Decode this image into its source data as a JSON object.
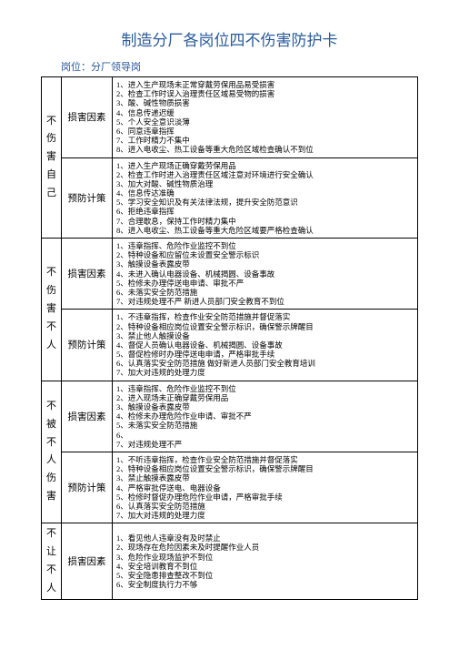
{
  "title": "制造分厂各岗位四不伤害防护卡",
  "subtitle": "岗位：分厂领导岗",
  "sections": [
    {
      "header": "不伤害自己",
      "rows": [
        {
          "label": "损害因素",
          "items": [
            "1、进入生产现场未正常穿戴劳保用品易受损害",
            "2、检查工作时误入治理责任区域易受物的损害",
            "3、酸、碱性物质损害",
            "4、信息传递迟缓",
            "5、个人安全意识淡薄",
            "6、同意违章指挥",
            "7、工作时精力不集中",
            "8、进入电收尘、热工设备等重大危险区域检查确认不到位"
          ]
        },
        {
          "label": "预防计策",
          "items": [
            "1、进入生产现场正确穿戴劳保用品",
            "2、检查工作时进入治理责任区域注意对环境进行安全确认",
            "3、加大对酸、碱性物质治理",
            "4、信息传达准确",
            "5、学习安全知识及有关法律法规，提升安全防范意识",
            "6、拒绝违章指挥",
            "7、合理歇息，保持工作时精力集中",
            "8、进入电收尘、热工设备等重大危险区域要严格检查确认"
          ]
        }
      ]
    },
    {
      "header": "不伤害不人",
      "rows": [
        {
          "label": "损害因素",
          "items": [
            "1、违章指挥、危险作业监控不到位",
            "2、特种设备和应留位未设置安全警示标识",
            "3、触摸设备表露皮带",
            "4、未进入确认电器设备、机械揭圆、设备事故",
            "5、检修未办理停送电申请、审批不严",
            "6、未落实安全防范措施",
            "7、对违规处理不严    新进人员部门安全教育不到位"
          ]
        },
        {
          "label": "预防计策",
          "items": [
            "1、不违章指挥，检查作业安全防范措施并督促落实",
            "2、特种设备相应岗位设置安全警示标识，确保警示牌醒目",
            "3、禁止他人触摸设备",
            "4、督促人员确认电器设备、机械揭圆、设备事故",
            "5、督促检修时办理停送电申请，严格审批手续",
            "6、认真落实安全防范措施  做好新进人员部门安全教育培训",
            "7、加大对违规的处理力度"
          ]
        }
      ]
    },
    {
      "header": "不被不人伤害",
      "rows": [
        {
          "label": "损害因素",
          "items": [
            "1、违章指挥、危险作业监控不到位",
            "2、进入现场未正确穿戴劳保用品",
            "3、触摸设备表露皮带",
            "4、检修未办理危险作业申请、审批不严",
            "5、未落实安全防范措施",
            "6、",
            "7、对违规处理不严"
          ]
        },
        {
          "label": "预防计策",
          "items": [
            "1、不听违章指挥，检查作业安全防范措施并督促落实",
            "2、特种设备相应岗位设置安全警示标识，确保警示牌醒目",
            "3、禁止触摸表露皮带",
            "4、严格审批停送电、电器设备",
            "5、检修时督促办理危险作业申请，严格审批手续",
            "6、认真落实安全防范措施",
            "7、加大对违规的处理力度"
          ]
        }
      ]
    },
    {
      "header": "不让不人",
      "rows": [
        {
          "label": "损害因素",
          "items": [
            "1、看见他人违章没有及时禁止",
            "2、现场存在危险因素未及时提醒作业人员",
            "3、危险作业现场监护不到位",
            "4、安全培训教育不到位",
            "5、安全隐患排查整改不到位",
            "6、安全制度执行力不够"
          ]
        }
      ]
    }
  ],
  "colors": {
    "title": "#2a5a9a",
    "border": "#000000",
    "background": "#ffffff",
    "text": "#000000"
  }
}
